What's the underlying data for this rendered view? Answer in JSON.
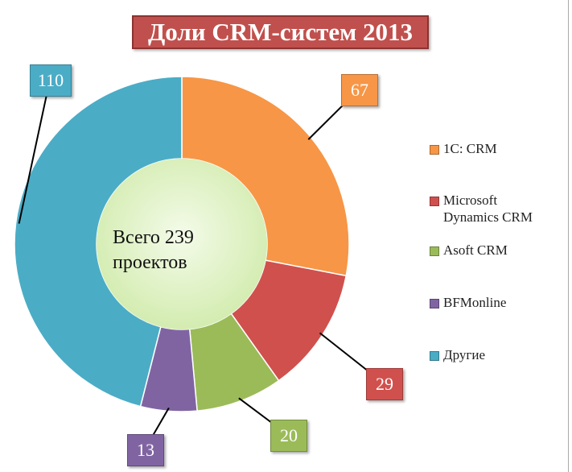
{
  "chart_data": {
    "type": "pie",
    "variant": "donut",
    "title": "Доли CRM-систем 2013",
    "center_text": [
      "Всего 239",
      "проектов"
    ],
    "start_angle": "top, clockwise",
    "legend_position": "right",
    "series": [
      {
        "name": "1C: CRM",
        "value": 67,
        "color": "#f79646"
      },
      {
        "name": "Microsoft Dynamics CRM",
        "value": 29,
        "color": "#d0504d"
      },
      {
        "name": "Asoft CRM",
        "value": 20,
        "color": "#9bbb59"
      },
      {
        "name": "BFMonline",
        "value": 13,
        "color": "#8064a2"
      },
      {
        "name": "Другие",
        "value": 110,
        "color": "#4bacc6"
      }
    ],
    "legend_labels": [
      "1C: CRM",
      "Microsoft",
      "Dynamics CRM",
      "Asoft CRM",
      "BFMonline",
      "Другие"
    ],
    "data_labels": [
      "67",
      "29",
      "20",
      "13",
      "110"
    ]
  }
}
